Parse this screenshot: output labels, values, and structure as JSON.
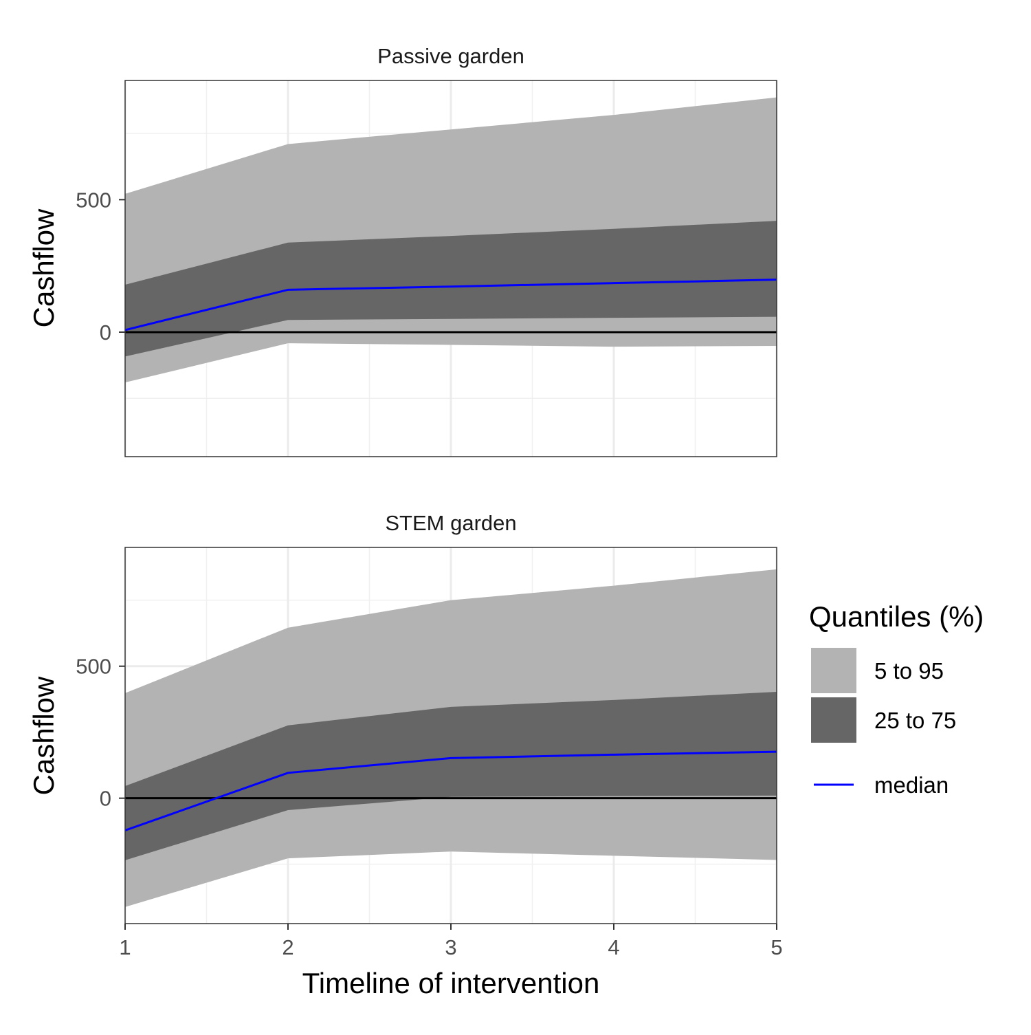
{
  "chart_data": [
    {
      "type": "area",
      "title": "Passive garden",
      "xlabel": "",
      "ylabel": "Cashflow",
      "x": [
        1,
        2,
        3,
        4,
        5
      ],
      "xlim": [
        1,
        5
      ],
      "ylim": [
        -470,
        950
      ],
      "xticks": [],
      "yticks": [
        0,
        500
      ],
      "grid": true,
      "reference_line": 0,
      "bands": [
        {
          "name": "5 to 95",
          "color": "#b3b3b3",
          "lower": [
            -190,
            -42,
            -48,
            -55,
            -52
          ],
          "upper": [
            522,
            710,
            765,
            820,
            886
          ]
        },
        {
          "name": "25 to 75",
          "color": "#666666",
          "lower": [
            -92,
            46,
            50,
            54,
            58
          ],
          "upper": [
            179,
            338,
            363,
            390,
            420
          ]
        }
      ],
      "median": {
        "name": "median",
        "color": "#0000ff",
        "values": [
          8,
          160,
          172,
          185,
          198
        ]
      }
    },
    {
      "type": "area",
      "title": "STEM garden",
      "xlabel": "Timeline of intervention",
      "ylabel": "Cashflow",
      "x": [
        1,
        2,
        3,
        4,
        5
      ],
      "xlim": [
        1,
        5
      ],
      "ylim": [
        -475,
        950
      ],
      "xticks": [
        1,
        2,
        3,
        4,
        5
      ],
      "yticks": [
        0,
        500
      ],
      "grid": true,
      "reference_line": 0,
      "bands": [
        {
          "name": "5 to 95",
          "color": "#b3b3b3",
          "lower": [
            -412,
            -228,
            -202,
            -218,
            -234
          ],
          "upper": [
            398,
            646,
            750,
            805,
            867
          ]
        },
        {
          "name": "25 to 75",
          "color": "#666666",
          "lower": [
            -235,
            -45,
            5,
            8,
            10
          ],
          "upper": [
            46,
            276,
            346,
            372,
            403
          ]
        }
      ],
      "median": {
        "name": "median",
        "color": "#0000ff",
        "values": [
          -122,
          96,
          152,
          165,
          176
        ]
      }
    }
  ],
  "legend": {
    "title": "Quantiles (%)",
    "items": [
      {
        "label": "5 to 95",
        "kind": "fill",
        "color": "#b3b3b3"
      },
      {
        "label": "25 to 75",
        "kind": "fill",
        "color": "#666666"
      },
      {
        "label": "median",
        "kind": "line",
        "color": "#0000ff"
      }
    ]
  }
}
